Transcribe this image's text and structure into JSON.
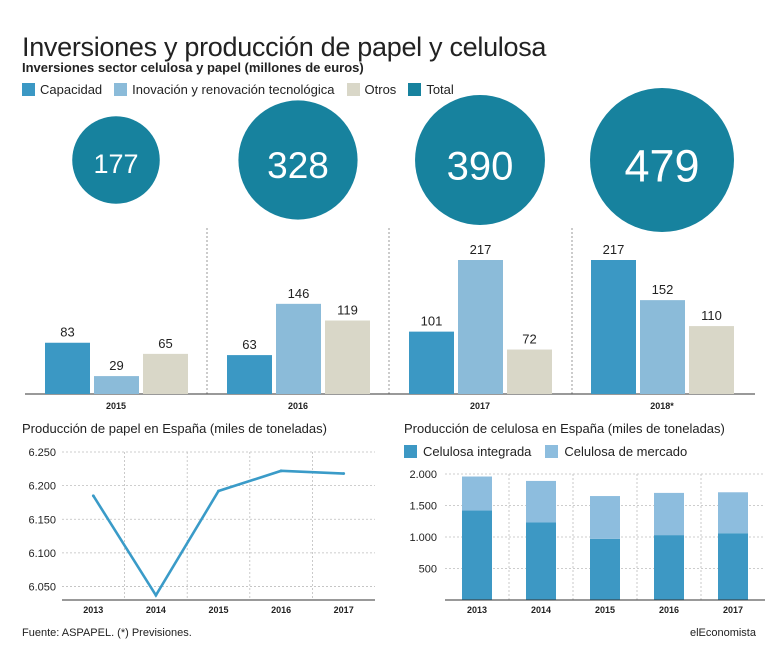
{
  "header": {
    "title": "Inversiones y producción de papel y celulosa",
    "subtitle": "Inversiones sector celulosa y papel (millones de euros)"
  },
  "legend_top": [
    {
      "label": "Capacidad",
      "color": "#3b98c4"
    },
    {
      "label": "Inovación y renovación tecnológica",
      "color": "#8bbbd9"
    },
    {
      "label": "Otros",
      "color": "#d9d7c8"
    },
    {
      "label": "Total",
      "color": "#17829e"
    }
  ],
  "paper_title": "Producción de papel en España (miles de toneladas)",
  "pulp_title": "Producción de celulosa en España (miles de toneladas)",
  "legend_pulp": [
    {
      "label": "Celulosa integrada",
      "color": "#3d98c4"
    },
    {
      "label": "Celulosa de mercado",
      "color": "#8dbdde"
    }
  ],
  "footer": {
    "source": "Fuente: ASPAPEL. (*) Previsiones.",
    "brand": "elEconomista"
  },
  "chart_data": [
    {
      "type": "bar",
      "title": "Inversiones sector celulosa y papel (millones de euros)",
      "categories": [
        "2015",
        "2016",
        "2017",
        "2018*"
      ],
      "series": [
        {
          "name": "Capacidad",
          "values": [
            83,
            63,
            101,
            217
          ],
          "color": "#3b98c4"
        },
        {
          "name": "Inovación y renovación tecnológica",
          "values": [
            29,
            146,
            217,
            152
          ],
          "color": "#8bbbd9"
        },
        {
          "name": "Otros",
          "values": [
            65,
            119,
            72,
            110
          ],
          "color": "#d9d7c8"
        }
      ],
      "totals": {
        "name": "Total",
        "values": [
          177,
          328,
          390,
          479
        ],
        "color": "#17829e"
      },
      "ylim": [
        0,
        217
      ]
    },
    {
      "type": "line",
      "title": "Producción de papel en España (miles de toneladas)",
      "x": [
        "2013",
        "2014",
        "2015",
        "2016",
        "2017"
      ],
      "values": [
        6185,
        6037,
        6192,
        6222,
        6218
      ],
      "ylim": [
        6030,
        6250
      ],
      "yticks": [
        6050,
        6100,
        6150,
        6200,
        6250
      ],
      "ytick_labels": [
        "6.050",
        "6.100",
        "6.150",
        "6.200",
        "6.250"
      ],
      "color": "#3a9bc8",
      "grid": true
    },
    {
      "type": "bar",
      "stacked": true,
      "title": "Producción de celulosa en España (miles de toneladas)",
      "categories": [
        "2013",
        "2014",
        "2015",
        "2016",
        "2017"
      ],
      "series": [
        {
          "name": "Celulosa integrada",
          "values": [
            1420,
            1230,
            970,
            1030,
            1060
          ],
          "color": "#3d98c4"
        },
        {
          "name": "Celulosa de mercado",
          "values": [
            540,
            660,
            680,
            670,
            650
          ],
          "color": "#8dbdde"
        }
      ],
      "ylim": [
        0,
        2000
      ],
      "yticks": [
        500,
        1000,
        1500,
        2000
      ],
      "ytick_labels": [
        "500",
        "1.000",
        "1.500",
        "2.000"
      ],
      "grid": true
    }
  ]
}
